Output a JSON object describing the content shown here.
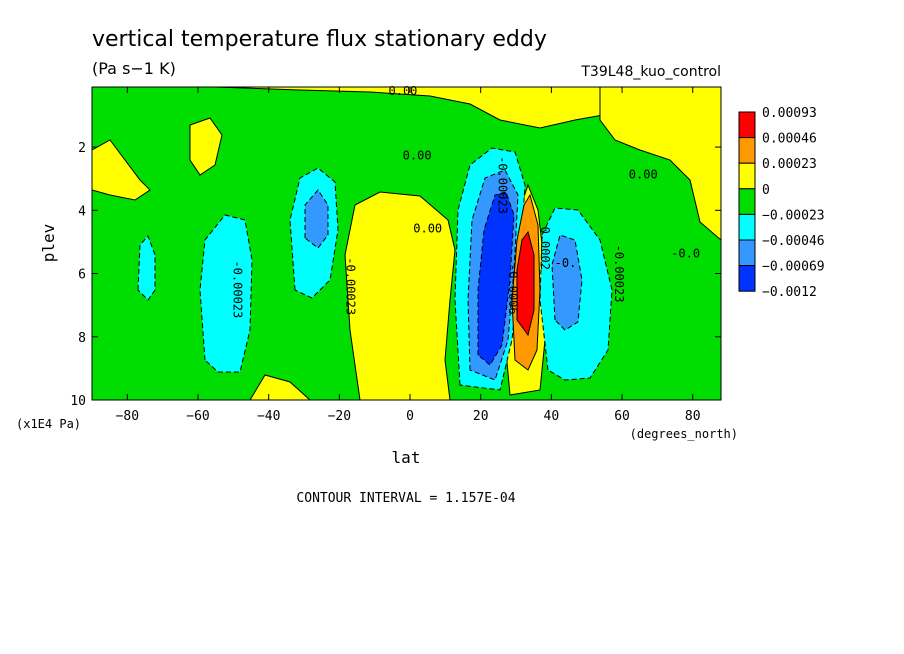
{
  "chart_data": {
    "type": "heatmap",
    "title": "vertical temperature flux stationary eddy",
    "units": "(Pa s−1 K)",
    "run_label": "T39L48_kuo_control",
    "xlabel": "lat",
    "x_units": "(degrees_north)",
    "ylabel": "plev",
    "y_units": "(x1E4 Pa)",
    "xlim": [
      -90,
      88
    ],
    "ylim": [
      10,
      0.1
    ],
    "x_ticks": [
      -80,
      -60,
      -40,
      -20,
      0,
      20,
      40,
      60,
      80
    ],
    "x_tick_labels": [
      "−80",
      "−60",
      "−40",
      "−20",
      "0",
      "20",
      "40",
      "60",
      "80"
    ],
    "y_ticks": [
      2,
      4,
      6,
      8,
      10
    ],
    "contour_interval_text": "CONTOUR INTERVAL = 1.157E-04",
    "colorbar": {
      "levels": [
        "0.00093",
        "0.00046",
        "0.00023",
        "0",
        "−0.00023",
        "−0.00046",
        "−0.00069",
        "−0.0012"
      ],
      "colors": [
        "#ff0000",
        "#ff9900",
        "#ffff00",
        "#00dd00",
        "#00ffff",
        "#3399ff",
        "#0033ff"
      ]
    },
    "contour_labels": [
      {
        "text": "0.00",
        "lat": -2,
        "p": 0.35
      },
      {
        "text": "0.00",
        "lat": 2,
        "p": 2.4
      },
      {
        "text": "0.00",
        "lat": 5,
        "p": 4.7
      },
      {
        "text": "-0.00023",
        "lat": 25,
        "p": 3.2
      },
      {
        "text": "-0.00023",
        "lat": -50,
        "p": 6.5
      },
      {
        "text": "-0.00023",
        "lat": -18,
        "p": 6.4
      },
      {
        "text": "0.00",
        "lat": 66,
        "p": 3.0
      },
      {
        "text": "-0.00023",
        "lat": 58,
        "p": 6.0
      },
      {
        "text": "-0.0",
        "lat": 78,
        "p": 5.5
      },
      {
        "text": "-0.0006",
        "lat": 28,
        "p": 6.5
      },
      {
        "text": "0.0002",
        "lat": 37,
        "p": 5.2
      },
      {
        "text": "-0.",
        "lat": 44,
        "p": 5.8
      }
    ]
  }
}
